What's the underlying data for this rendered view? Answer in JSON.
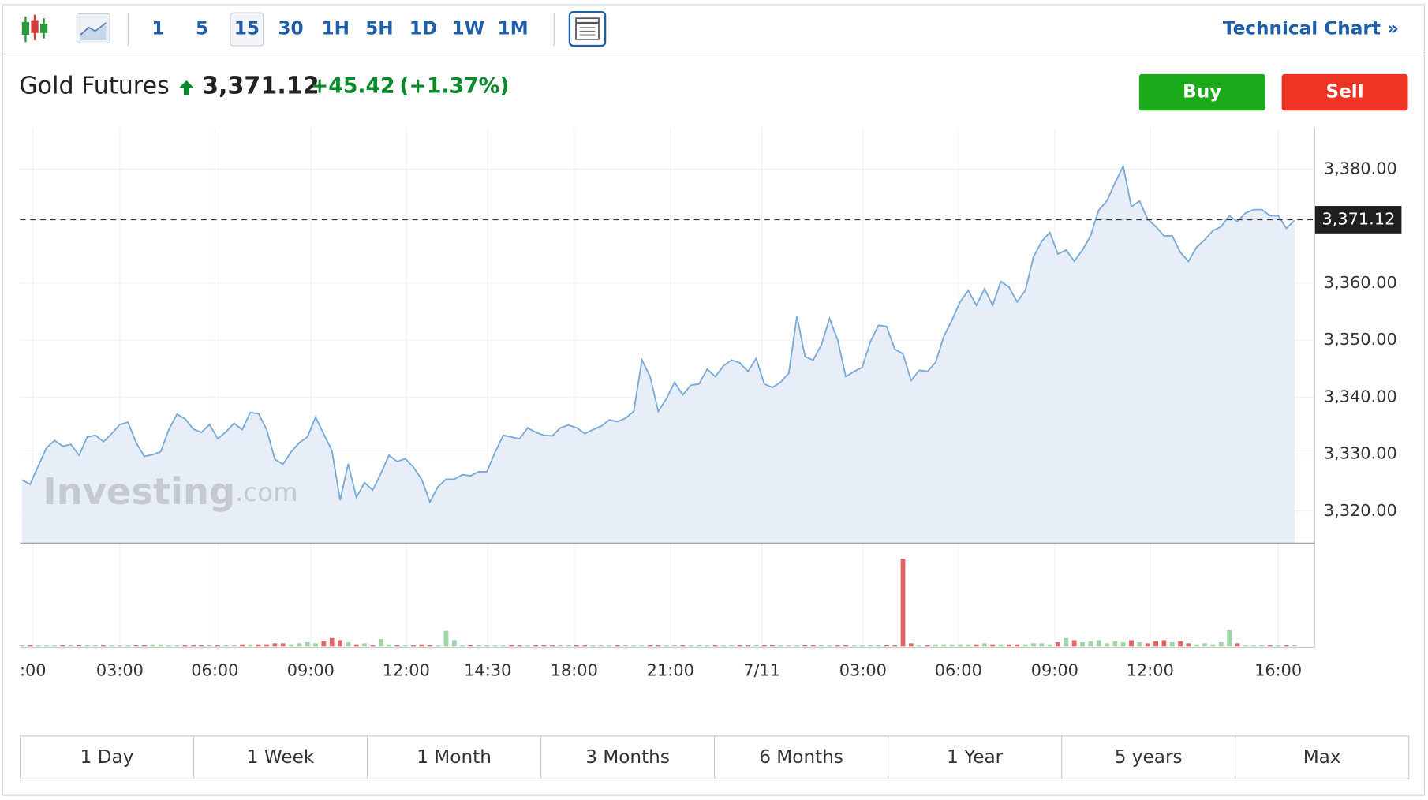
{
  "toolbar": {
    "intervals": [
      "1",
      "5",
      "15",
      "30",
      "1H",
      "5H",
      "1D",
      "1W",
      "1M"
    ],
    "selected": "15",
    "technical_chart": "Technical Chart »"
  },
  "header": {
    "name": "Gold Futures",
    "price": "3,371.12",
    "change": "+45.42",
    "change_pct": "(+1.37%)"
  },
  "buttons": {
    "buy": "Buy",
    "sell": "Sell"
  },
  "watermark": {
    "brand": "Investing",
    "suffix": ".com"
  },
  "chart_data": {
    "type": "line",
    "color": "#7aaad6",
    "fill": "#e8eef7",
    "up_color": "#9fd6a8",
    "down_color": "#e06666",
    "grid": true,
    "ylim": [
      3314.4,
      3387.2
    ],
    "yticks": [
      {
        "value": 3320,
        "label": "3,320.00"
      },
      {
        "value": 3330,
        "label": "3,330.00"
      },
      {
        "value": 3340,
        "label": "3,340.00"
      },
      {
        "value": 3350,
        "label": "3,350.00"
      },
      {
        "value": 3360,
        "label": "3,360.00"
      },
      {
        "value": 3380,
        "label": "3,380.00"
      }
    ],
    "xticks": [
      {
        "value": 1.35,
        "label": ":00"
      },
      {
        "value": 12.0,
        "label": "03:00"
      },
      {
        "value": 23.65,
        "label": "06:00"
      },
      {
        "value": 35.4,
        "label": "09:00"
      },
      {
        "value": 47.1,
        "label": "12:00"
      },
      {
        "value": 57.1,
        "label": "14:30"
      },
      {
        "value": 67.7,
        "label": "18:00"
      },
      {
        "value": 79.5,
        "label": "21:00"
      },
      {
        "value": 90.7,
        "label": "7/11"
      },
      {
        "value": 103.1,
        "label": "03:00"
      },
      {
        "value": 114.8,
        "label": "06:00"
      },
      {
        "value": 126.6,
        "label": "09:00"
      },
      {
        "value": 138.3,
        "label": "12:00"
      },
      {
        "value": 154.0,
        "label": "16:00"
      }
    ],
    "last_price": {
      "value": 3371.12,
      "label": "3,371.12"
    },
    "vlim": [
      0,
      100
    ],
    "values": [
      3325.5,
      3324.7,
      3327.9,
      3331.1,
      3332.4,
      3331.4,
      3331.7,
      3329.8,
      3333.0,
      3333.3,
      3332.2,
      3333.6,
      3335.2,
      3335.6,
      3332.0,
      3329.6,
      3329.9,
      3330.4,
      3334.3,
      3337.0,
      3336.2,
      3334.4,
      3333.8,
      3335.2,
      3332.7,
      3333.9,
      3335.4,
      3334.3,
      3337.3,
      3337.1,
      3334.3,
      3329.1,
      3328.2,
      3330.4,
      3332.0,
      3333.0,
      3336.5,
      3333.5,
      3330.6,
      3321.9,
      3328.3,
      3322.4,
      3325.0,
      3323.7,
      3326.6,
      3329.8,
      3328.7,
      3329.2,
      3327.7,
      3325.6,
      3321.6,
      3324.3,
      3325.6,
      3325.6,
      3326.4,
      3326.2,
      3326.9,
      3326.9,
      3330.3,
      3333.3,
      3333.0,
      3332.7,
      3334.6,
      3333.8,
      3333.3,
      3333.2,
      3334.6,
      3335.1,
      3334.6,
      3333.6,
      3334.3,
      3334.9,
      3336.0,
      3335.7,
      3336.3,
      3337.5,
      3346.5,
      3343.6,
      3337.5,
      3339.7,
      3342.6,
      3340.4,
      3342.1,
      3342.3,
      3344.9,
      3343.6,
      3345.5,
      3346.5,
      3346.0,
      3344.5,
      3346.8,
      3342.3,
      3341.7,
      3342.6,
      3344.2,
      3354.2,
      3347.1,
      3346.5,
      3349.2,
      3353.8,
      3350.0,
      3343.6,
      3344.5,
      3345.2,
      3349.7,
      3352.6,
      3352.4,
      3348.4,
      3347.6,
      3342.9,
      3344.7,
      3344.5,
      3346.1,
      3350.6,
      3353.5,
      3356.7,
      3358.7,
      3356.1,
      3359.0,
      3356.1,
      3360.3,
      3359.3,
      3356.7,
      3358.7,
      3364.6,
      3367.3,
      3368.9,
      3365.1,
      3365.8,
      3363.8,
      3365.8,
      3368.3,
      3372.8,
      3374.4,
      3377.6,
      3380.5,
      3373.4,
      3374.4,
      3371.2,
      3369.9,
      3368.3,
      3368.3,
      3365.4,
      3363.8,
      3366.3,
      3367.6,
      3369.2,
      3369.9,
      3371.8,
      3370.8,
      3372.3,
      3372.9,
      3372.9,
      3371.8,
      3371.8,
      3369.6,
      3371.0
    ],
    "volumes": [
      1,
      1,
      1,
      1,
      1,
      1,
      1,
      1,
      1,
      1,
      1,
      1,
      1,
      1,
      1,
      1,
      2,
      2,
      1,
      1,
      1,
      1,
      1,
      1,
      1,
      1,
      1,
      2,
      2,
      2,
      2,
      3,
      3,
      2,
      3,
      4,
      3,
      5,
      8,
      6,
      4,
      2,
      3,
      1,
      7,
      2,
      1,
      1,
      1,
      2,
      1,
      1,
      15,
      6,
      1,
      1,
      1,
      1,
      1,
      1,
      1,
      1,
      1,
      1,
      1,
      1,
      1,
      1,
      1,
      1,
      1,
      1,
      1,
      1,
      1,
      1,
      1,
      1,
      1,
      1,
      1,
      1,
      1,
      1,
      1,
      1,
      1,
      1,
      1,
      1,
      1,
      1,
      1,
      1,
      1,
      1,
      1,
      1,
      1,
      1,
      1,
      1,
      1,
      1,
      1,
      1,
      1,
      1,
      85,
      3,
      1,
      1,
      2,
      2,
      2,
      2,
      2,
      2,
      3,
      2,
      2,
      2,
      2,
      2,
      3,
      3,
      2,
      4,
      8,
      6,
      4,
      5,
      6,
      3,
      5,
      4,
      6,
      4,
      3,
      5,
      6,
      4,
      5,
      3,
      2,
      3,
      2,
      4,
      16,
      3,
      1,
      1,
      1,
      1,
      1,
      1,
      1
    ]
  },
  "ranges": [
    "1 Day",
    "1 Week",
    "1 Month",
    "3 Months",
    "6 Months",
    "1 Year",
    "5 years",
    "Max"
  ]
}
